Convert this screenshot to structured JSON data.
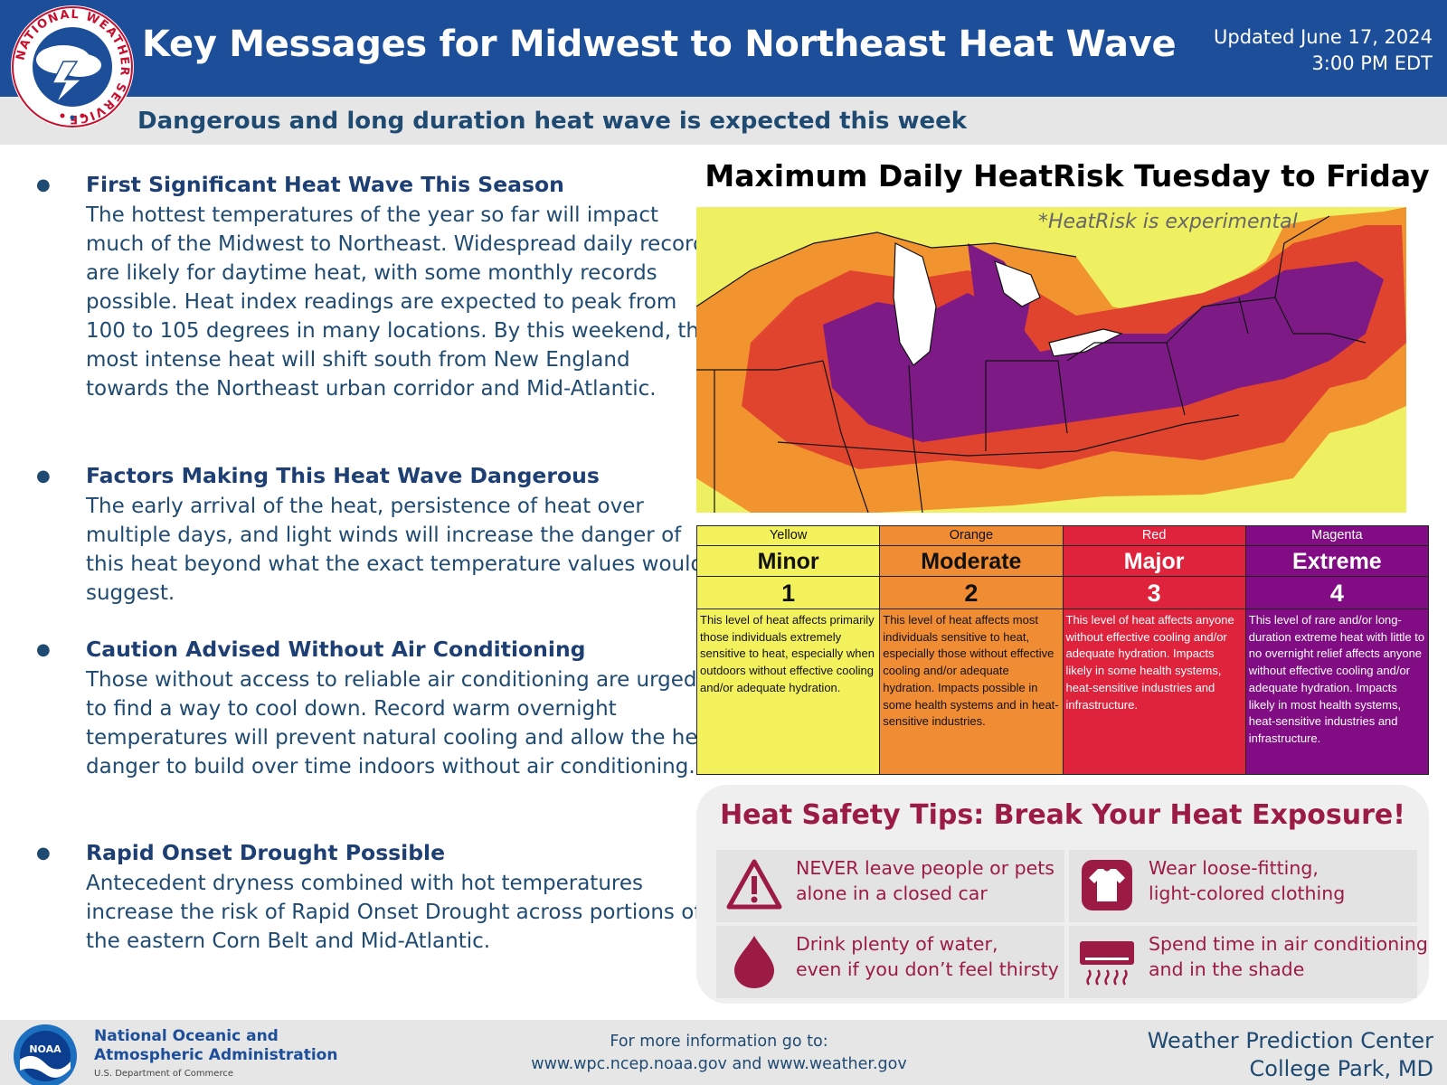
{
  "header": {
    "title": "Key Messages for Midwest to Northeast Heat Wave",
    "updated_line1": "Updated June 17, 2024",
    "updated_line2": "3:00 PM EDT",
    "subtitle": "Dangerous and long duration heat wave is expected this week",
    "logo_text": "NATIONAL WEATHER SERVICE"
  },
  "bullets": [
    {
      "heading": "First Significant Heat Wave This Season",
      "text": "The hottest temperatures of the year so far will impact much of the Midwest to Northeast. Widespread daily records are likely for daytime heat, with some monthly records possible. Heat index readings are expected to peak from 100 to 105 degrees in many locations. By this weekend, the most intense heat will shift south from New England towards the Northeast urban corridor and Mid-Atlantic."
    },
    {
      "heading": "Factors Making This Heat Wave Dangerous",
      "text": "The early arrival of the heat, persistence of heat over multiple days, and light winds will increase the danger of this heat beyond what the exact temperature values would suggest."
    },
    {
      "heading": "Caution Advised Without Air Conditioning",
      "text": "Those without access to reliable air conditioning are urged to find a way to cool down. Record warm overnight temperatures will prevent natural cooling and allow the heat danger to build over time indoors without air conditioning."
    },
    {
      "heading": "Rapid Onset Drought Possible",
      "text": "Antecedent dryness combined with hot temperatures increase the risk of Rapid Onset Drought across portions of the eastern Corn Belt and Mid-Atlantic."
    }
  ],
  "map": {
    "title": "Maximum Daily HeatRisk Tuesday to Friday",
    "note": "*HeatRisk is experimental"
  },
  "risk_levels": [
    {
      "color_name": "Yellow",
      "label": "Minor",
      "number": "1",
      "color": "#f3f15c",
      "description": "This level of heat affects primarily those individuals extremely sensitive to heat, especially when outdoors without effective cooling and/or adequate hydration."
    },
    {
      "color_name": "Orange",
      "label": "Moderate",
      "number": "2",
      "color": "#f08c34",
      "description": "This level of heat affects most individuals sensitive to heat, especially those without effective cooling and/or adequate hydration. Impacts possible in some health systems and in heat-sensitive industries."
    },
    {
      "color_name": "Red",
      "label": "Major",
      "number": "3",
      "color": "#e0233d",
      "description": "This level of heat affects anyone without effective cooling and/or adequate hydration. Impacts likely in some health systems, heat-sensitive industries and infrastructure."
    },
    {
      "color_name": "Magenta",
      "label": "Extreme",
      "number": "4",
      "color": "#820c84",
      "description": "This level of rare and/or long-duration extreme heat with little to no overnight relief affects anyone without effective cooling and/or adequate hydration. Impacts likely in most health systems, heat-sensitive industries and infrastructure."
    }
  ],
  "safety_tips": {
    "title": "Heat Safety Tips: Break Your Heat Exposure!",
    "tips": [
      {
        "icon": "warning-icon",
        "line1": "NEVER leave people or pets",
        "line2": "alone in a closed car"
      },
      {
        "icon": "shirt-icon",
        "line1": "Wear loose-fitting,",
        "line2": "light-colored clothing"
      },
      {
        "icon": "water-drop-icon",
        "line1": "Drink plenty of water,",
        "line2": "even if you don’t feel thirsty"
      },
      {
        "icon": "air-conditioner-icon",
        "line1": "Spend time in air conditioning",
        "line2": "and in the shade"
      }
    ]
  },
  "footer": {
    "noaa_line1": "National Oceanic and",
    "noaa_line2": "Atmospheric Administration",
    "noaa_dept": "U.S. Department of Commerce",
    "noaa_logo_text": "NOAA",
    "more_info_line1": "For more information go to:",
    "more_info_line2": "www.wpc.ncep.noaa.gov and www.weather.gov",
    "wpc_line1": "Weather Prediction Center",
    "wpc_line2": "College Park, MD"
  },
  "colors": {
    "header_blue": "#1d4e9a",
    "text_navy": "#1f4a72",
    "tips_crimson": "#9c1b45"
  }
}
